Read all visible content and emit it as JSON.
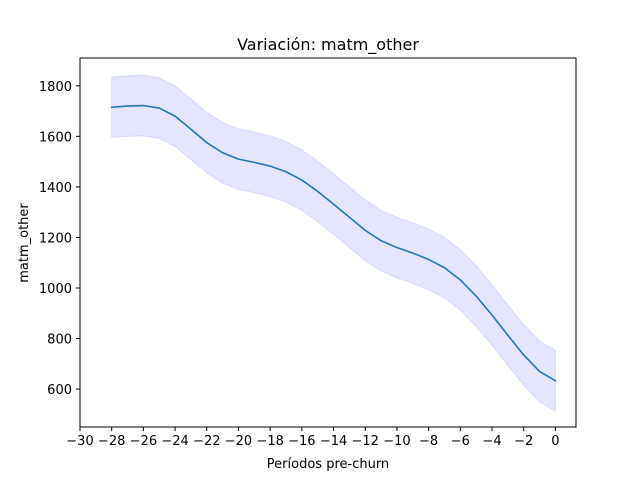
{
  "chart_data": {
    "type": "line",
    "title": "Variación: matm_other",
    "xlabel": "Períodos pre-churn",
    "ylabel": "matm_other",
    "xlim": [
      -30,
      1.3
    ],
    "ylim": [
      450,
      1910
    ],
    "x_ticks": [
      -30,
      -28,
      -26,
      -24,
      -22,
      -20,
      -18,
      -16,
      -14,
      -12,
      -10,
      -8,
      -6,
      -4,
      -2,
      0
    ],
    "x_tick_labels": [
      "−30",
      "−28",
      "−26",
      "−24",
      "−22",
      "−20",
      "−18",
      "−16",
      "−14",
      "−12",
      "−10",
      "−8",
      "−6",
      "−4",
      "−2",
      "0"
    ],
    "y_ticks": [
      600,
      800,
      1000,
      1200,
      1400,
      1600,
      1800
    ],
    "y_tick_labels": [
      "600",
      "800",
      "1000",
      "1200",
      "1400",
      "1600",
      "1800"
    ],
    "grid": false,
    "line_color": "#1f77b4",
    "band_color": "#0000ff",
    "series": [
      {
        "x": [
          -28,
          -27,
          -26,
          -25,
          -24,
          -23,
          -22,
          -21,
          -20,
          -19,
          -18,
          -17,
          -16,
          -15,
          -14,
          -13,
          -12,
          -11,
          -10,
          -9,
          -8,
          -7,
          -6,
          -5,
          -4,
          -3,
          -2,
          -1,
          0
        ],
        "values": [
          1715,
          1720,
          1722,
          1712,
          1680,
          1628,
          1575,
          1535,
          1510,
          1497,
          1482,
          1460,
          1427,
          1382,
          1332,
          1280,
          1228,
          1187,
          1160,
          1138,
          1113,
          1080,
          1032,
          968,
          893,
          813,
          735,
          670,
          633
        ],
        "upper": [
          1835,
          1840,
          1842,
          1832,
          1800,
          1748,
          1695,
          1655,
          1630,
          1617,
          1602,
          1580,
          1547,
          1502,
          1452,
          1400,
          1348,
          1307,
          1280,
          1258,
          1233,
          1200,
          1152,
          1088,
          1013,
          933,
          855,
          790,
          753
        ],
        "lower": [
          1595,
          1600,
          1602,
          1592,
          1560,
          1508,
          1455,
          1415,
          1390,
          1377,
          1362,
          1340,
          1307,
          1262,
          1212,
          1160,
          1108,
          1067,
          1040,
          1018,
          993,
          960,
          912,
          848,
          773,
          693,
          615,
          550,
          513
        ]
      }
    ]
  }
}
